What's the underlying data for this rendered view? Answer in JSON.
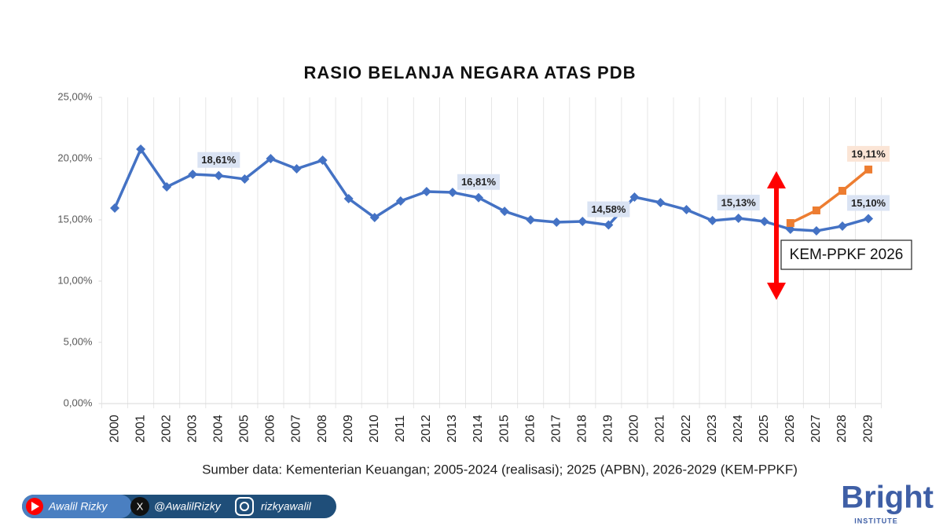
{
  "chart_data": {
    "type": "line",
    "title": "RASIO BELANJA NEGARA ATAS PDB",
    "note": "Sumber data: Kementerian Keuangan; 2005-2024 (realisasi); 2025 (APBN), 2026-2029 (KEM-PPKF)",
    "annotation": "KEM-PPKF 2026",
    "categories": [
      "2000",
      "2001",
      "2002",
      "2003",
      "2004",
      "2005",
      "2006",
      "2007",
      "2008",
      "2009",
      "2010",
      "2011",
      "2012",
      "2013",
      "2014",
      "2015",
      "2016",
      "2017",
      "2018",
      "2019",
      "2020",
      "2021",
      "2022",
      "2023",
      "2024",
      "2025",
      "2026",
      "2027",
      "2028",
      "2029"
    ],
    "series": [
      {
        "color": "#4472c4",
        "marker": "diamond",
        "values": [
          15.96,
          20.77,
          17.69,
          18.72,
          18.61,
          18.33,
          20.0,
          19.17,
          19.87,
          16.73,
          15.19,
          16.54,
          17.31,
          17.24,
          16.81,
          15.7,
          15.0,
          14.81,
          14.87,
          14.58,
          16.86,
          16.41,
          15.83,
          14.94,
          15.13,
          14.87,
          14.23,
          14.1,
          14.49,
          15.1
        ],
        "value_labels": [
          null,
          null,
          null,
          null,
          "18,61%",
          null,
          null,
          null,
          null,
          null,
          null,
          null,
          null,
          null,
          "16,81%",
          null,
          null,
          null,
          null,
          "14,58%",
          null,
          null,
          null,
          null,
          "15,13%",
          null,
          null,
          null,
          null,
          "15,10%"
        ]
      },
      {
        "color": "#ed7d31",
        "marker": "square",
        "values": [
          null,
          null,
          null,
          null,
          null,
          null,
          null,
          null,
          null,
          null,
          null,
          null,
          null,
          null,
          null,
          null,
          null,
          null,
          null,
          null,
          null,
          null,
          null,
          null,
          null,
          null,
          14.74,
          15.77,
          17.37,
          19.11
        ],
        "value_labels": [
          null,
          null,
          null,
          null,
          null,
          null,
          null,
          null,
          null,
          null,
          null,
          null,
          null,
          null,
          null,
          null,
          null,
          null,
          null,
          null,
          null,
          null,
          null,
          null,
          null,
          null,
          null,
          null,
          null,
          "19,11%"
        ]
      }
    ],
    "ylim": [
      0,
      25
    ],
    "yticks": [
      {
        "value": 0,
        "label": "0,00%"
      },
      {
        "value": 5,
        "label": "5,00%"
      },
      {
        "value": 10,
        "label": "10,00%"
      },
      {
        "value": 15,
        "label": "15,00%"
      },
      {
        "value": 20,
        "label": "20,00%"
      },
      {
        "value": 25,
        "label": "25,00%"
      }
    ]
  },
  "footer": {
    "youtube": "Awalil Rizky",
    "x": "@AwalilRizky",
    "instagram": "rizkyawalil",
    "logo": "Bright",
    "logo_sub": "INSTITUTE"
  }
}
